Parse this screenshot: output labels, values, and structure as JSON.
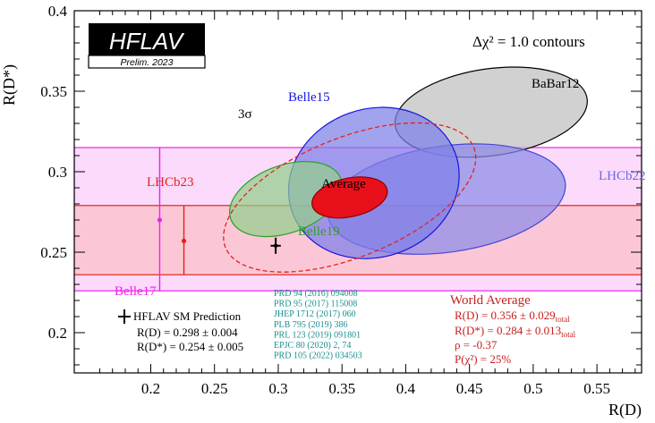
{
  "chart_data": {
    "type": "scatter",
    "xlabel": "R(D)",
    "ylabel": "R(D*)",
    "xlim": [
      0.14,
      0.585
    ],
    "ylim": [
      0.175,
      0.4
    ],
    "x_ticks": [
      {
        "v": 0.2,
        "label": "0.2"
      },
      {
        "v": 0.25,
        "label": "0.25"
      },
      {
        "v": 0.3,
        "label": "0.3"
      },
      {
        "v": 0.35,
        "label": "0.35"
      },
      {
        "v": 0.4,
        "label": "0.4"
      },
      {
        "v": 0.45,
        "label": "0.45"
      },
      {
        "v": 0.5,
        "label": "0.5"
      },
      {
        "v": 0.55,
        "label": "0.55"
      }
    ],
    "y_ticks": [
      {
        "v": 0.2,
        "label": "0.2"
      },
      {
        "v": 0.25,
        "label": "0.25"
      },
      {
        "v": 0.3,
        "label": "0.3"
      },
      {
        "v": 0.35,
        "label": "0.35"
      },
      {
        "v": 0.4,
        "label": "0.4"
      }
    ],
    "bands": [
      {
        "name": "Belle17",
        "ymin": 0.226,
        "ymax": 0.315,
        "fill": "#fbd6fb",
        "stroke": "#ee22ee"
      },
      {
        "name": "LHCb23",
        "ymin": 0.236,
        "ymax": 0.279,
        "fill": "#fbc4d2",
        "stroke": "#e2231a"
      }
    ],
    "measurements": [
      {
        "name": "Belle17",
        "x": 0.207,
        "y": 0.27,
        "yerr_low": 0.044,
        "yerr_high": 0.045,
        "color": "#ee22ee"
      },
      {
        "name": "LHCb23",
        "x": 0.226,
        "y": 0.257,
        "yerr_low": 0.021,
        "yerr_high": 0.022,
        "color": "#e2231a"
      }
    ],
    "contours": [
      {
        "name": "BaBar12",
        "cx": 0.467,
        "cy": 0.337,
        "rx": 0.076,
        "ry": 0.027,
        "angle": -8,
        "fill": "#bfbfbf",
        "stroke": "#000000"
      },
      {
        "name": "LHCb22",
        "cx": 0.432,
        "cy": 0.283,
        "rx": 0.094,
        "ry": 0.033,
        "angle": -8,
        "fill": "#8c8ce8",
        "stroke": "#4444d8"
      },
      {
        "name": "Belle15",
        "cx": 0.375,
        "cy": 0.293,
        "rx": 0.068,
        "ry": 0.046,
        "angle": -20,
        "fill": "#7e80e8",
        "stroke": "#1616e0"
      },
      {
        "name": "Belle19",
        "cx": 0.306,
        "cy": 0.283,
        "rx": 0.046,
        "ry": 0.021,
        "angle": -20,
        "fill": "#93cf8a",
        "stroke": "#2aa02a"
      },
      {
        "name": "Average",
        "cx": 0.356,
        "cy": 0.284,
        "rx": 0.03,
        "ry": 0.012,
        "angle": -12,
        "fill": "#e8101a",
        "stroke": "#8a0000"
      }
    ],
    "sigma3_contour": {
      "cx": 0.356,
      "cy": 0.284,
      "rx": 0.105,
      "ry": 0.037,
      "angle": -22,
      "stroke": "#e2231a"
    },
    "sm_prediction": {
      "x": 0.298,
      "y": 0.254,
      "xerr": 0.004,
      "yerr": 0.005
    },
    "labels": {
      "BaBar12": "BaBar12",
      "Belle15": "Belle15",
      "LHCb22": "LHCb22",
      "Belle19": "Belle19",
      "LHCb23": "LHCb23",
      "Belle17": "Belle17",
      "Average": "Average",
      "sigma3": "3σ"
    },
    "contour_title": "Δχ² = 1.0 contours"
  },
  "logo": {
    "text": "HFLAV",
    "subtitle": "Prelim. 2023"
  },
  "legend": {
    "sm_label": "HFLAV SM Prediction",
    "sm_rd": "R(D) = 0.298 ± 0.004",
    "sm_rds": "R(D*) = 0.254 ± 0.005"
  },
  "references": [
    "PRD 94 (2016) 094008",
    "PRD 95 (2017) 115008",
    "JHEP 1712 (2017) 060",
    "PLB 795 (2019) 386",
    "PRL 123 (2019) 091801",
    "EPJC 80 (2020) 2, 74",
    "PRD 105 (2022) 034503"
  ],
  "world_average": {
    "title": "World Average",
    "rd": "R(D) = 0.356 ± 0.029",
    "rds": "R(D*) = 0.284 ± 0.013",
    "sub": "total",
    "rho": "ρ = -0.37",
    "pchi2": "P(χ²) = 25%"
  },
  "colors": {
    "world_average": "#c81e1e",
    "references": "#1a8f8f"
  }
}
